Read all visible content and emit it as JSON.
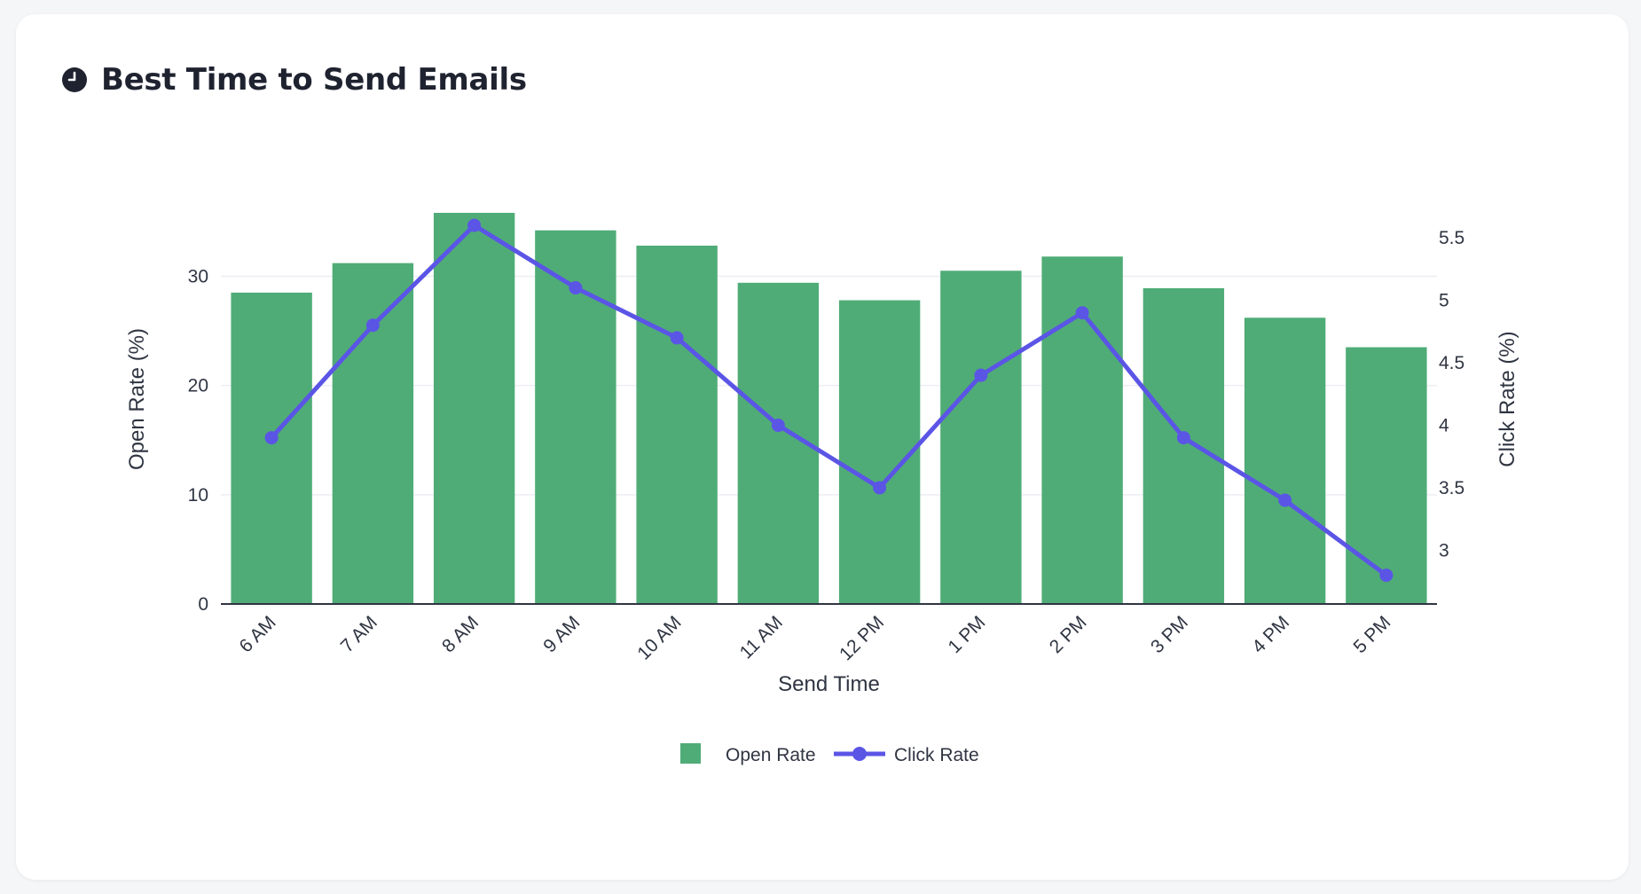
{
  "page": {
    "title": "Best Time to Send Emails",
    "title_icon": "clock-icon"
  },
  "colors": {
    "open_rate": "#4fac77",
    "click_rate": "#5b55e6",
    "grid": "#eceef2",
    "axis": "#2f3542"
  },
  "chart_data": {
    "type": "bar",
    "title": "Best Time to Send Emails",
    "xlabel": "Send Time",
    "ylabel": "Open Rate (%)",
    "y2label": "Click Rate (%)",
    "categories": [
      "6 AM",
      "7 AM",
      "8 AM",
      "9 AM",
      "10 AM",
      "11 AM",
      "12 PM",
      "1 PM",
      "2 PM",
      "3 PM",
      "4 PM",
      "5 PM"
    ],
    "series": [
      {
        "name": "Open Rate",
        "type": "bar",
        "axis": "left",
        "values": [
          28.5,
          31.2,
          35.8,
          34.2,
          32.8,
          29.4,
          27.8,
          30.5,
          31.8,
          28.9,
          26.2,
          23.5
        ]
      },
      {
        "name": "Click Rate",
        "type": "line",
        "axis": "right",
        "values": [
          3.9,
          4.8,
          5.6,
          5.1,
          4.7,
          4.0,
          3.5,
          4.4,
          4.9,
          3.9,
          3.4,
          2.8
        ]
      }
    ],
    "ylim": [
      0,
      35.8
    ],
    "yticks": [
      0,
      10,
      20,
      30
    ],
    "y2lim": [
      2.57,
      5.7
    ],
    "y2ticks": [
      3,
      3.5,
      4,
      4.5,
      5,
      5.5
    ],
    "legend": "bottom-center",
    "grid": true
  }
}
